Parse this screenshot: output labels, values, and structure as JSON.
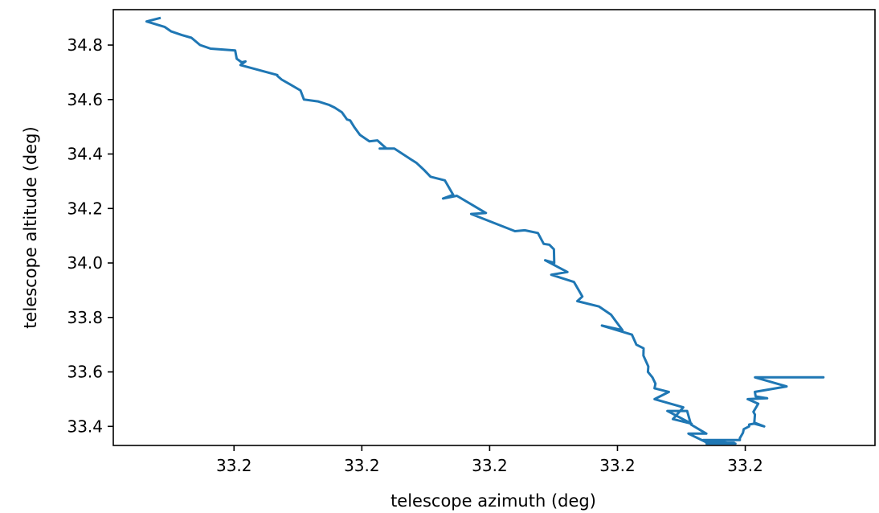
{
  "chart_data": {
    "type": "line",
    "title": "",
    "xlabel": "telescope azimuth (deg)",
    "ylabel": "telescope altitude (deg)",
    "xlim": [
      0.0,
      1.0
    ],
    "ylim": [
      33.33,
      34.93
    ],
    "x_tick_positions": [
      0.1585,
      0.3263,
      0.4941,
      0.6619,
      0.8297
    ],
    "x_tick_labels": [
      "33.2",
      "33.2",
      "33.2",
      "33.2",
      "33.2"
    ],
    "y_ticks": [
      33.4,
      33.6,
      33.8,
      34.0,
      34.2,
      34.4,
      34.6,
      34.8
    ],
    "y_tick_labels": [
      "33.4",
      "33.6",
      "33.8",
      "34.0",
      "34.2",
      "34.4",
      "34.6",
      "34.8"
    ],
    "grid": false,
    "line_color": "#1f77b4",
    "series": [
      {
        "x": [
          0.0622,
          0.0437,
          0.0673,
          0.0761,
          0.09,
          0.1026,
          0.1139,
          0.1277,
          0.16,
          0.162,
          0.1685,
          0.1735,
          0.167,
          0.2154,
          0.2154,
          0.2211,
          0.2314,
          0.2458,
          0.2503,
          0.2687,
          0.2837,
          0.2907,
          0.3001,
          0.3069,
          0.311,
          0.3161,
          0.3238,
          0.3362,
          0.3467,
          0.3587,
          0.3498,
          0.369,
          0.3891,
          0.3983,
          0.4085,
          0.4166,
          0.4352,
          0.4462,
          0.4329,
          0.4511,
          0.4892,
          0.4698,
          0.5061,
          0.5273,
          0.5402,
          0.5575,
          0.5651,
          0.5726,
          0.5785,
          0.5789,
          0.567,
          0.5962,
          0.575,
          0.6049,
          0.6158,
          0.6092,
          0.6378,
          0.6535,
          0.6685,
          0.6415,
          0.6809,
          0.6868,
          0.6962,
          0.696,
          0.7024,
          0.7019,
          0.7078,
          0.7118,
          0.7106,
          0.7294,
          0.7107,
          0.7483,
          0.7347,
          0.7592,
          0.7274,
          0.7534,
          0.7584,
          0.7786,
          0.7551,
          0.7798,
          0.8149,
          0.7789,
          0.8168,
          0.7744,
          0.8226,
          0.8226,
          0.8267,
          0.8277,
          0.8348,
          0.8348,
          0.8412,
          0.8421,
          0.8545,
          0.8415,
          0.8424,
          0.8404,
          0.8467,
          0.8329,
          0.8584,
          0.8434,
          0.8423,
          0.884,
          0.8425,
          0.8434,
          0.8878,
          0.8483,
          0.9323,
          0.8871,
          0.8438,
          0.8876
        ],
        "y": [
          34.9,
          34.8867,
          34.8667,
          34.85,
          34.8367,
          34.8267,
          34.8,
          34.7867,
          34.78,
          34.75,
          34.7367,
          34.74,
          34.7267,
          34.69,
          34.6867,
          34.6733,
          34.6567,
          34.6333,
          34.6,
          34.5933,
          34.58,
          34.57,
          34.5533,
          34.5267,
          34.5233,
          34.5,
          34.47,
          34.4467,
          34.45,
          34.42,
          34.42,
          34.42,
          34.3833,
          34.3667,
          34.34,
          34.3167,
          34.3033,
          34.25,
          34.2367,
          34.2467,
          34.1833,
          34.18,
          34.14,
          34.1167,
          34.12,
          34.11,
          34.07,
          34.0667,
          34.05,
          34.0,
          34.01,
          33.9667,
          33.9567,
          33.93,
          33.8767,
          33.86,
          33.84,
          33.81,
          33.7533,
          33.77,
          33.7367,
          33.7,
          33.6867,
          33.66,
          33.62,
          33.6,
          33.58,
          33.5567,
          33.54,
          33.5267,
          33.5,
          33.47,
          33.4267,
          33.41,
          33.4567,
          33.4567,
          33.4067,
          33.3733,
          33.3733,
          33.34,
          33.34,
          33.3367,
          33.3367,
          33.35,
          33.35,
          33.3567,
          33.3767,
          33.39,
          33.4,
          33.4067,
          33.41,
          33.4133,
          33.4,
          33.41,
          33.4433,
          33.4533,
          33.4833,
          33.5,
          33.5033,
          33.51,
          33.5267,
          33.5467,
          33.58,
          33.58,
          33.58,
          33.58,
          33.58,
          33.58,
          33.58,
          33.58
        ]
      }
    ]
  }
}
